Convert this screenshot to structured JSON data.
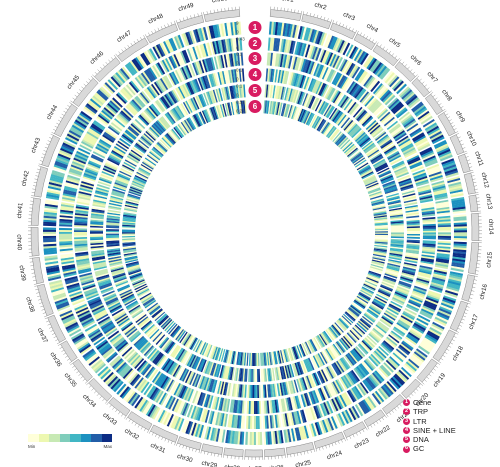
{
  "chromosomes": [
    "chr1",
    "chr2",
    "chr3",
    "chr4",
    "chr5",
    "chr6",
    "chr7",
    "chr8",
    "chr9",
    "chr10",
    "chr11",
    "chr12",
    "chr13",
    "chr14",
    "chr15",
    "chr16",
    "chr17",
    "chr18",
    "chr19",
    "chr20",
    "chr21",
    "chr22",
    "chr23",
    "chr24",
    "chr25",
    "chr26",
    "chr27",
    "chr28",
    "chr29",
    "chr30",
    "chr31",
    "chr32",
    "chr33",
    "chr34",
    "chr35",
    "chr36",
    "chr37",
    "chr38",
    "chr39",
    "chr40",
    "chr41",
    "chr42",
    "chr43",
    "chr44",
    "chr45",
    "chr46",
    "chr47",
    "chr48",
    "chr49",
    "chr50"
  ],
  "chromosome_sizes": [
    45,
    42,
    36,
    30,
    38,
    32,
    28,
    30,
    34,
    28,
    26,
    30,
    24,
    40,
    46,
    38,
    44,
    48,
    36,
    30,
    34,
    30,
    32,
    44,
    40,
    30,
    26,
    28,
    30,
    34,
    40,
    36,
    32,
    38,
    34,
    30,
    40,
    46,
    38,
    42,
    40,
    44,
    46,
    50,
    46,
    42,
    48,
    46,
    38,
    52
  ],
  "track_markers": [
    "1",
    "2",
    "3",
    "4",
    "5",
    "6"
  ],
  "track_scales": [
    {
      "min": "0",
      "max": "9"
    },
    {
      "min": "0",
      "max": "0.43"
    },
    {
      "min": "0",
      "max": "0.1"
    },
    {
      "min": "0",
      "max": "0.1"
    },
    {
      "min": "0",
      "max": "0.1"
    },
    {
      "min": "0.27",
      "max": "0.52"
    }
  ],
  "legend": {
    "items": [
      {
        "num": "1",
        "label": "Gene"
      },
      {
        "num": "2",
        "label": "TRP"
      },
      {
        "num": "3",
        "label": "LTR"
      },
      {
        "num": "4",
        "label": "SINE + LINE"
      },
      {
        "num": "5",
        "label": "DNA"
      },
      {
        "num": "6",
        "label": "GC"
      }
    ]
  },
  "color_scale": {
    "colors": [
      "#ffffd9",
      "#edf8b1",
      "#c7e9b4",
      "#7fcdbb",
      "#41b6c4",
      "#1d91c0",
      "#225ea8",
      "#0c2c84"
    ],
    "min_label": "Min",
    "max_label": "Max"
  }
}
